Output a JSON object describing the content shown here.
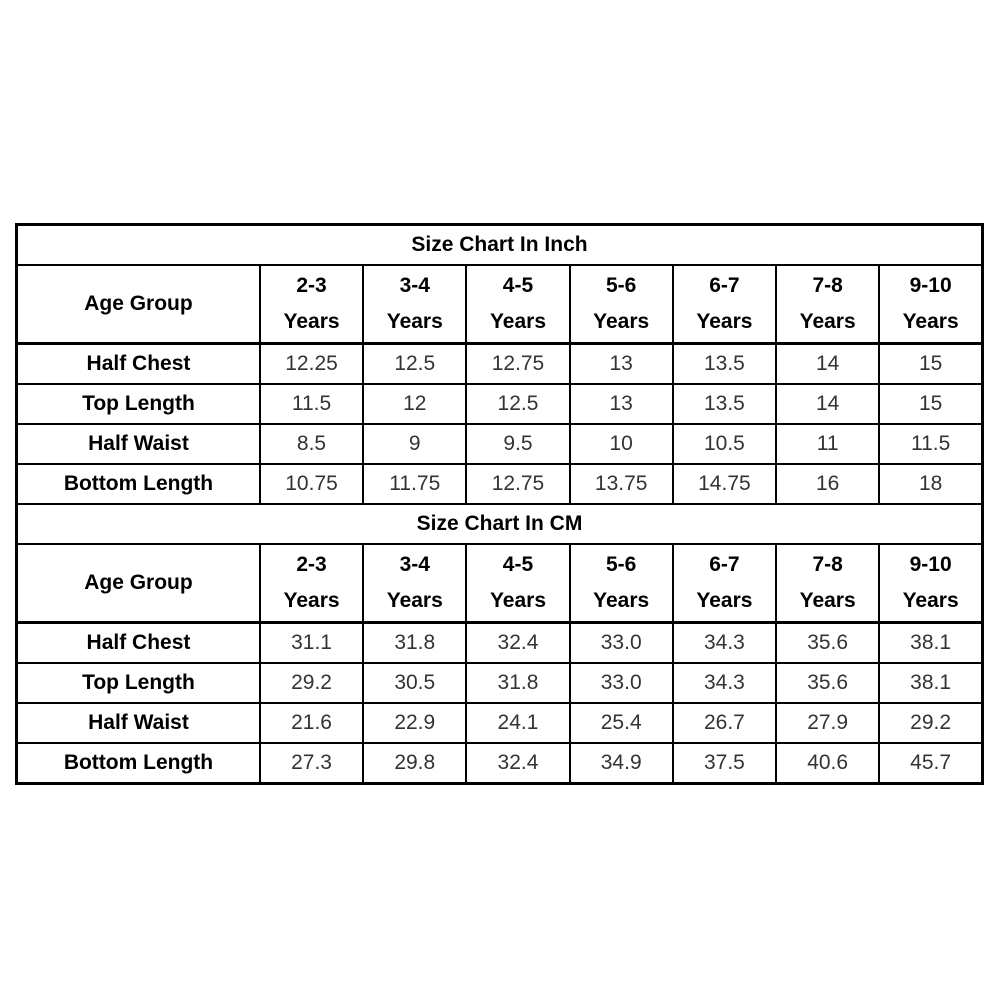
{
  "page": {
    "background_color": "#ffffff",
    "border_color": "#000000",
    "label_color": "#000000",
    "value_color": "#333333"
  },
  "table": {
    "age_header_label": "Age Group",
    "years_suffix": "Years",
    "age_groups": [
      "2-3",
      "3-4",
      "4-5",
      "5-6",
      "6-7",
      "7-8",
      "9-10"
    ],
    "sections": [
      {
        "title": "Size Chart In Inch",
        "rows": [
          {
            "label": "Half Chest",
            "values": [
              "12.25",
              "12.5",
              "12.75",
              "13",
              "13.5",
              "14",
              "15"
            ]
          },
          {
            "label": "Top Length",
            "values": [
              "11.5",
              "12",
              "12.5",
              "13",
              "13.5",
              "14",
              "15"
            ]
          },
          {
            "label": "Half Waist",
            "values": [
              "8.5",
              "9",
              "9.5",
              "10",
              "10.5",
              "11",
              "11.5"
            ]
          },
          {
            "label": "Bottom Length",
            "values": [
              "10.75",
              "11.75",
              "12.75",
              "13.75",
              "14.75",
              "16",
              "18"
            ]
          }
        ]
      },
      {
        "title": "Size Chart In CM",
        "rows": [
          {
            "label": "Half Chest",
            "values": [
              "31.1",
              "31.8",
              "32.4",
              "33.0",
              "34.3",
              "35.6",
              "38.1"
            ]
          },
          {
            "label": "Top Length",
            "values": [
              "29.2",
              "30.5",
              "31.8",
              "33.0",
              "34.3",
              "35.6",
              "38.1"
            ]
          },
          {
            "label": "Half Waist",
            "values": [
              "21.6",
              "22.9",
              "24.1",
              "25.4",
              "26.7",
              "27.9",
              "29.2"
            ]
          },
          {
            "label": "Bottom Length",
            "values": [
              "27.3",
              "29.8",
              "32.4",
              "34.9",
              "37.5",
              "40.6",
              "45.7"
            ]
          }
        ]
      }
    ]
  },
  "chart_data": [
    {
      "type": "table",
      "title": "Size Chart In Inch",
      "columns": [
        "Age Group",
        "2-3 Years",
        "3-4 Years",
        "4-5 Years",
        "5-6 Years",
        "6-7 Years",
        "7-8 Years",
        "9-10 Years"
      ],
      "rows": [
        [
          "Half Chest",
          12.25,
          12.5,
          12.75,
          13,
          13.5,
          14,
          15
        ],
        [
          "Top Length",
          11.5,
          12,
          12.5,
          13,
          13.5,
          14,
          15
        ],
        [
          "Half Waist",
          8.5,
          9,
          9.5,
          10,
          10.5,
          11,
          11.5
        ],
        [
          "Bottom Length",
          10.75,
          11.75,
          12.75,
          13.75,
          14.75,
          16,
          18
        ]
      ]
    },
    {
      "type": "table",
      "title": "Size Chart In CM",
      "columns": [
        "Age Group",
        "2-3 Years",
        "3-4 Years",
        "4-5 Years",
        "5-6 Years",
        "6-7 Years",
        "7-8 Years",
        "9-10 Years"
      ],
      "rows": [
        [
          "Half Chest",
          31.1,
          31.8,
          32.4,
          33.0,
          34.3,
          35.6,
          38.1
        ],
        [
          "Top Length",
          29.2,
          30.5,
          31.8,
          33.0,
          34.3,
          35.6,
          38.1
        ],
        [
          "Half Waist",
          21.6,
          22.9,
          24.1,
          25.4,
          26.7,
          27.9,
          29.2
        ],
        [
          "Bottom Length",
          27.3,
          29.8,
          32.4,
          34.9,
          37.5,
          40.6,
          45.7
        ]
      ]
    }
  ]
}
